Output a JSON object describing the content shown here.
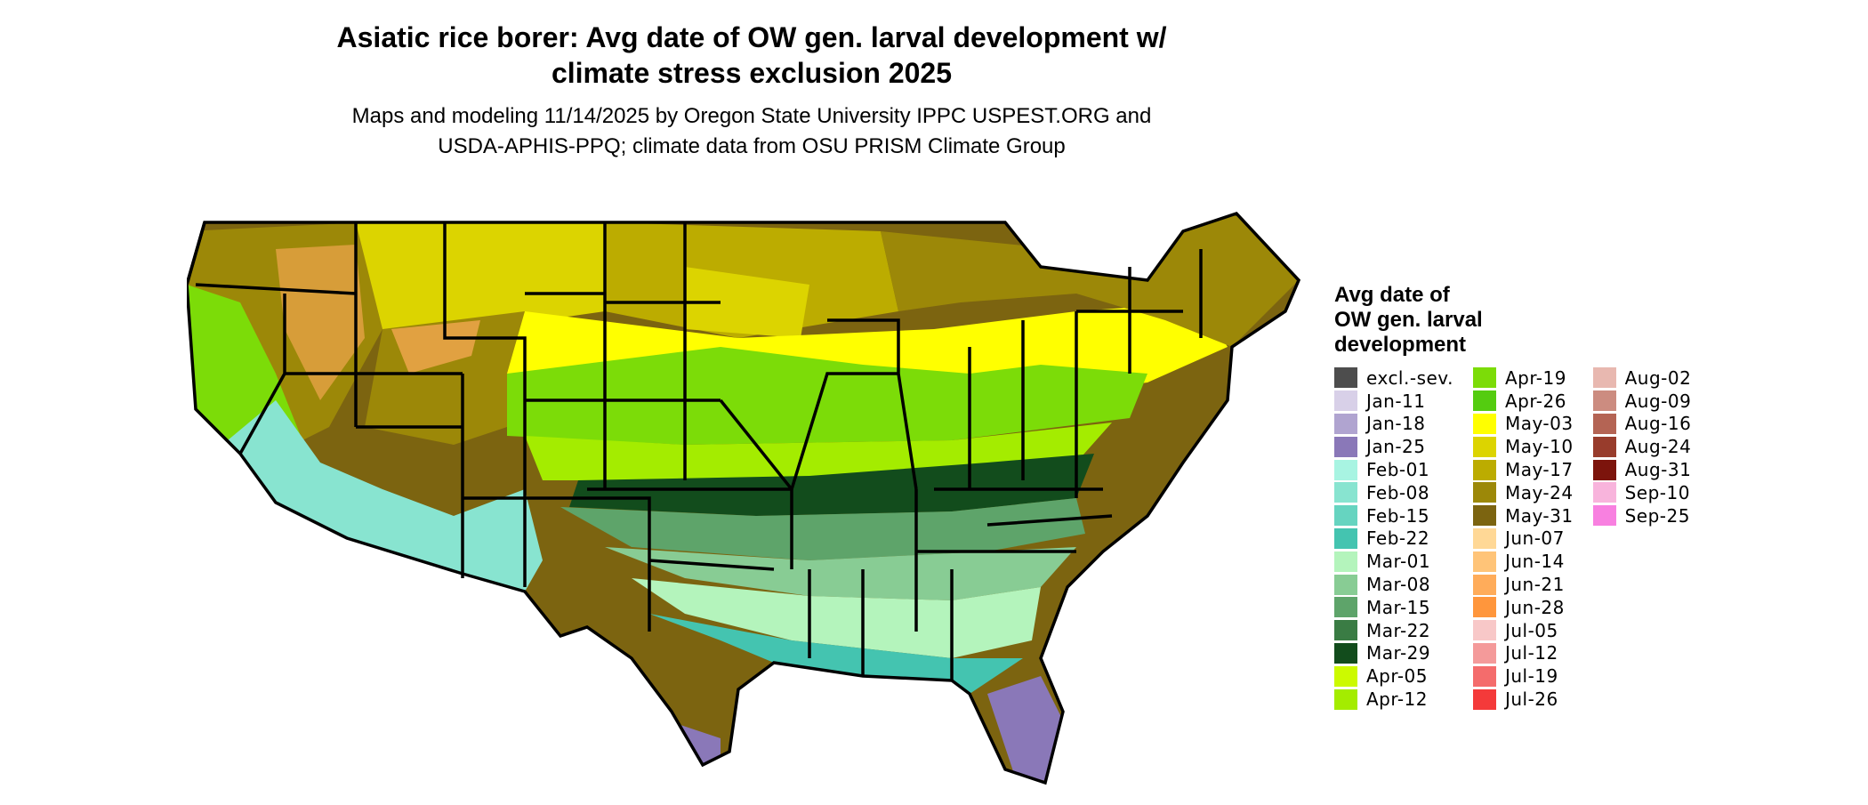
{
  "map": {
    "title": "Asiatic rice borer: Avg date of OW gen. larval development w/\nclimate stress exclusion 2025",
    "subtitle": "Maps and modeling 11/14/2025 by Oregon State University IPPC USPEST.ORG and\nUSDA-APHIS-PPQ; climate data from OSU PRISM Climate Group"
  },
  "legend": {
    "title": "Avg date of\nOW gen. larval\ndevelopment",
    "columns": [
      [
        {
          "label": "excl.-sev.",
          "color": "#4d4d4d"
        },
        {
          "label": "Jan-11",
          "color": "#d8d0e8"
        },
        {
          "label": "Jan-18",
          "color": "#b0a4d0"
        },
        {
          "label": "Jan-25",
          "color": "#8a78b8"
        },
        {
          "label": "Feb-01",
          "color": "#a8f4e2"
        },
        {
          "label": "Feb-08",
          "color": "#88e4d0"
        },
        {
          "label": "Feb-15",
          "color": "#66d4c0"
        },
        {
          "label": "Feb-22",
          "color": "#44c4b0"
        },
        {
          "label": "Mar-01",
          "color": "#b4f4bc"
        },
        {
          "label": "Mar-08",
          "color": "#88cc94"
        },
        {
          "label": "Mar-15",
          "color": "#5ea46a"
        },
        {
          "label": "Mar-22",
          "color": "#3a7c44"
        },
        {
          "label": "Mar-29",
          "color": "#124c1c"
        },
        {
          "label": "Apr-05",
          "color": "#ccfa00"
        },
        {
          "label": "Apr-12",
          "color": "#a4ec00"
        }
      ],
      [
        {
          "label": "Apr-19",
          "color": "#7cdc08"
        },
        {
          "label": "Apr-26",
          "color": "#54cc10"
        },
        {
          "label": "May-03",
          "color": "#ffff00"
        },
        {
          "label": "May-10",
          "color": "#dcd400"
        },
        {
          "label": "May-17",
          "color": "#bcac00"
        },
        {
          "label": "May-24",
          "color": "#9c8808"
        },
        {
          "label": "May-31",
          "color": "#7c6410"
        },
        {
          "label": "Jun-07",
          "color": "#ffd896"
        },
        {
          "label": "Jun-14",
          "color": "#ffc478"
        },
        {
          "label": "Jun-21",
          "color": "#ffac5a"
        },
        {
          "label": "Jun-28",
          "color": "#ff963c"
        },
        {
          "label": "Jul-05",
          "color": "#f8c8c8"
        },
        {
          "label": "Jul-12",
          "color": "#f49a9a"
        },
        {
          "label": "Jul-19",
          "color": "#f46c6c"
        },
        {
          "label": "Jul-26",
          "color": "#f43a3a"
        }
      ],
      [
        {
          "label": "Aug-02",
          "color": "#e8b8b0"
        },
        {
          "label": "Aug-09",
          "color": "#cc8c80"
        },
        {
          "label": "Aug-16",
          "color": "#b46454"
        },
        {
          "label": "Aug-24",
          "color": "#983c2c"
        },
        {
          "label": "Aug-31",
          "color": "#7c140c"
        },
        {
          "label": "Sep-10",
          "color": "#f8b4dc"
        },
        {
          "label": "Sep-25",
          "color": "#f880e0"
        }
      ]
    ]
  }
}
